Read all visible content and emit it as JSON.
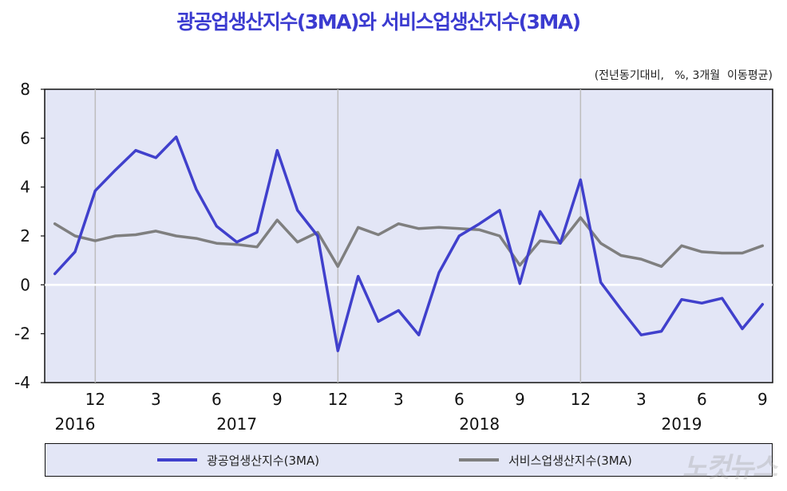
{
  "colors": {
    "title": "#3b3bd0",
    "series_industrial": "#4040cc",
    "series_service": "#7f7f7f",
    "plot_bg": "#e3e6f6",
    "grid": "#bdbdbd",
    "axis": "#111111",
    "zero_line": "#ffffff"
  },
  "watermark": "노컷뉴스",
  "chart_data": {
    "type": "line",
    "title": "광공업생산지수(3MA)와  서비스업생산지수(3MA)",
    "unit_note": "(전년동기대비,   %, 3개월  이동평균)",
    "ylim": [
      -4,
      8
    ],
    "y_ticks": [
      -4,
      -2,
      0,
      2,
      4,
      6,
      8
    ],
    "y_tick_labels": [
      "-4",
      "-2",
      "0",
      "2",
      "4",
      "6",
      "8"
    ],
    "x_months": [
      "2016-10",
      "2016-11",
      "2016-12",
      "2017-01",
      "2017-02",
      "2017-03",
      "2017-04",
      "2017-05",
      "2017-06",
      "2017-07",
      "2017-08",
      "2017-09",
      "2017-10",
      "2017-11",
      "2017-12",
      "2018-01",
      "2018-02",
      "2018-03",
      "2018-04",
      "2018-05",
      "2018-06",
      "2018-07",
      "2018-08",
      "2018-09",
      "2018-10",
      "2018-11",
      "2018-12",
      "2019-01",
      "2019-02",
      "2019-03",
      "2019-04",
      "2019-05",
      "2019-06",
      "2019-07",
      "2019-08",
      "2019-09"
    ],
    "x_tick_labels": [
      {
        "index": 2,
        "label": "12"
      },
      {
        "index": 5,
        "label": "3"
      },
      {
        "index": 8,
        "label": "6"
      },
      {
        "index": 11,
        "label": "9"
      },
      {
        "index": 14,
        "label": "12"
      },
      {
        "index": 17,
        "label": "3"
      },
      {
        "index": 20,
        "label": "6"
      },
      {
        "index": 23,
        "label": "9"
      },
      {
        "index": 26,
        "label": "12"
      },
      {
        "index": 29,
        "label": "3"
      },
      {
        "index": 32,
        "label": "6"
      },
      {
        "index": 35,
        "label": "9"
      }
    ],
    "year_labels": [
      {
        "index": 1,
        "label": "2016"
      },
      {
        "index": 9,
        "label": "2017"
      },
      {
        "index": 21,
        "label": "2018"
      },
      {
        "index": 31,
        "label": "2019"
      }
    ],
    "vertical_gridlines_at": [
      2,
      14,
      26
    ],
    "series": [
      {
        "name": "광공업생산지수(3MA)",
        "color": "#4040cc",
        "values": [
          0.45,
          1.35,
          3.85,
          4.7,
          5.5,
          5.2,
          6.05,
          3.9,
          2.4,
          1.75,
          2.15,
          5.5,
          3.05,
          2.0,
          -2.7,
          0.35,
          -1.5,
          -1.05,
          -2.05,
          0.5,
          2.0,
          2.5,
          3.05,
          0.05,
          3.0,
          1.7,
          4.3,
          0.1,
          -1.0,
          -2.05,
          -1.9,
          -0.6,
          -0.75,
          -0.55,
          -1.8,
          -0.8
        ]
      },
      {
        "name": "서비스업생산지수(3MA)",
        "color": "#7f7f7f",
        "values": [
          2.5,
          2.0,
          1.8,
          2.0,
          2.05,
          2.2,
          2.0,
          1.9,
          1.7,
          1.65,
          1.55,
          2.65,
          1.75,
          2.15,
          0.75,
          2.35,
          2.05,
          2.5,
          2.3,
          2.35,
          2.3,
          2.25,
          2.0,
          0.8,
          1.8,
          1.7,
          2.75,
          1.7,
          1.2,
          1.05,
          0.75,
          1.6,
          1.35,
          1.3,
          1.3,
          1.6
        ]
      }
    ]
  },
  "legend": {
    "items": [
      {
        "label": "광공업생산지수(3MA)",
        "color": "#4040cc"
      },
      {
        "label": "서비스업생산지수(3MA)",
        "color": "#7f7f7f"
      }
    ]
  }
}
